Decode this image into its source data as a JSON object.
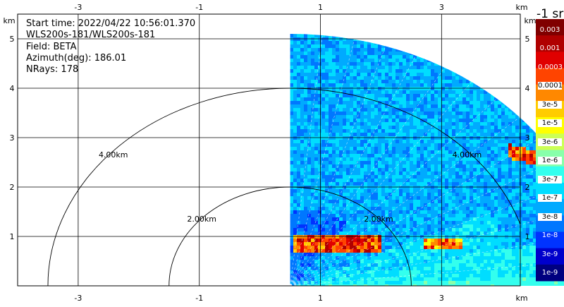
{
  "info": {
    "start_time": "Start time: 2022/04/22 10:56:01.370",
    "instrument": "WLS200s-181/WLS200s-181",
    "field": "Field: BETA",
    "azimuth": "Azimuth(deg): 186.01",
    "nrays": "NRays: 178"
  },
  "chart_data": {
    "type": "heatmap",
    "subtype": "lidar-range-height-scan",
    "xlabel": "km",
    "ylabel": "km",
    "x_unit": "km",
    "y_unit": "km",
    "xlim": [
      -4,
      4.3
    ],
    "ylim": [
      0,
      5.5
    ],
    "x_ticks": [
      -3,
      -1,
      1,
      3
    ],
    "y_ticks": [
      1,
      2,
      3,
      4,
      5
    ],
    "grid": true,
    "range_rings": [
      {
        "label": "2.00km",
        "radius_km": 2
      },
      {
        "label": "4.00km",
        "radius_km": 4
      }
    ],
    "scan_sector": {
      "x_start_km": 0.5,
      "max_range_km": 5.1,
      "elevation_deg": [
        0,
        90
      ]
    },
    "colorbar": {
      "title": "-1 sr",
      "position": "right",
      "colors": [
        "#000080",
        "#0000cc",
        "#0033ff",
        "#0077ff",
        "#00aaff",
        "#00ddff",
        "#33ffee",
        "#88ffaa",
        "#ccff55",
        "#ffff00",
        "#ffcc00",
        "#ff8800",
        "#ff4400",
        "#e00000",
        "#b00000",
        "#800000"
      ],
      "labels": [
        "1e-9",
        "3e-9",
        "1e-8",
        "3e-8",
        "1e-7",
        "3e-7",
        "1e-6",
        "3e-6",
        "1e-5",
        "3e-5",
        "0.0001",
        "0.0003",
        "0.001",
        "0.003"
      ]
    }
  }
}
